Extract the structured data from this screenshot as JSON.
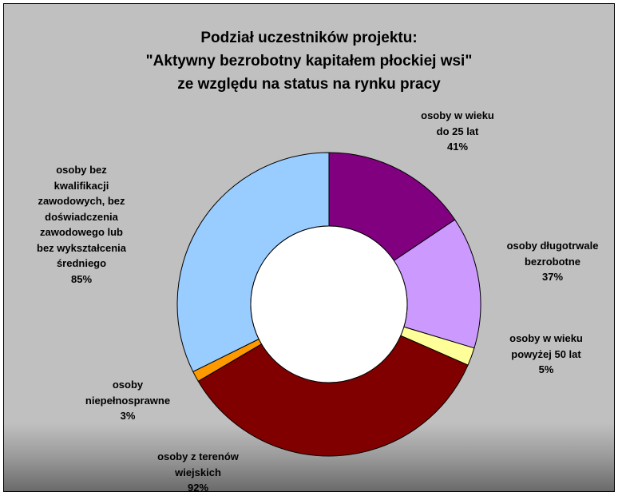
{
  "chart_data": {
    "type": "pie",
    "donut": true,
    "title_lines": [
      "Podział uczestników projektu:",
      "\"Aktywny bezrobotny kapitałem płockiej wsi\"",
      "ze względu na status na rynku pracy"
    ],
    "slices": [
      {
        "name": "osoby w wieku do 25 lat",
        "label_lines": [
          "osoby w wieku",
          "do 25 lat"
        ],
        "value": 41,
        "value_label": "41%",
        "color": "#800080"
      },
      {
        "name": "osoby długotrwale bezrobotne",
        "label_lines": [
          "osoby długotrwale",
          "bezrobotne"
        ],
        "value": 37,
        "value_label": "37%",
        "color": "#cc99ff"
      },
      {
        "name": "osoby w wieku powyżej 50 lat",
        "label_lines": [
          "osoby w wieku",
          "powyżej 50 lat"
        ],
        "value": 5,
        "value_label": "5%",
        "color": "#ffff99"
      },
      {
        "name": "osoby z terenów wiejskich",
        "label_lines": [
          "osoby z terenów",
          "wiejskich"
        ],
        "value": 92,
        "value_label": "92%",
        "color": "#800000"
      },
      {
        "name": "osoby niepełnosprawne",
        "label_lines": [
          "osoby",
          "niepełnosprawne"
        ],
        "value": 3,
        "value_label": "3%",
        "color": "#ff9900"
      },
      {
        "name": "osoby bez kwalifikacji zawodowych, bez doświadczenia zawodowego lub bez wykształcenia średniego",
        "label_lines": [
          "osoby bez",
          "kwalifikacji",
          "zawodowych, bez",
          "doświadczenia",
          "zawodowego lub",
          "bez wykształcenia",
          "średniego"
        ],
        "value": 85,
        "value_label": "85%",
        "color": "#99ccff"
      }
    ]
  }
}
